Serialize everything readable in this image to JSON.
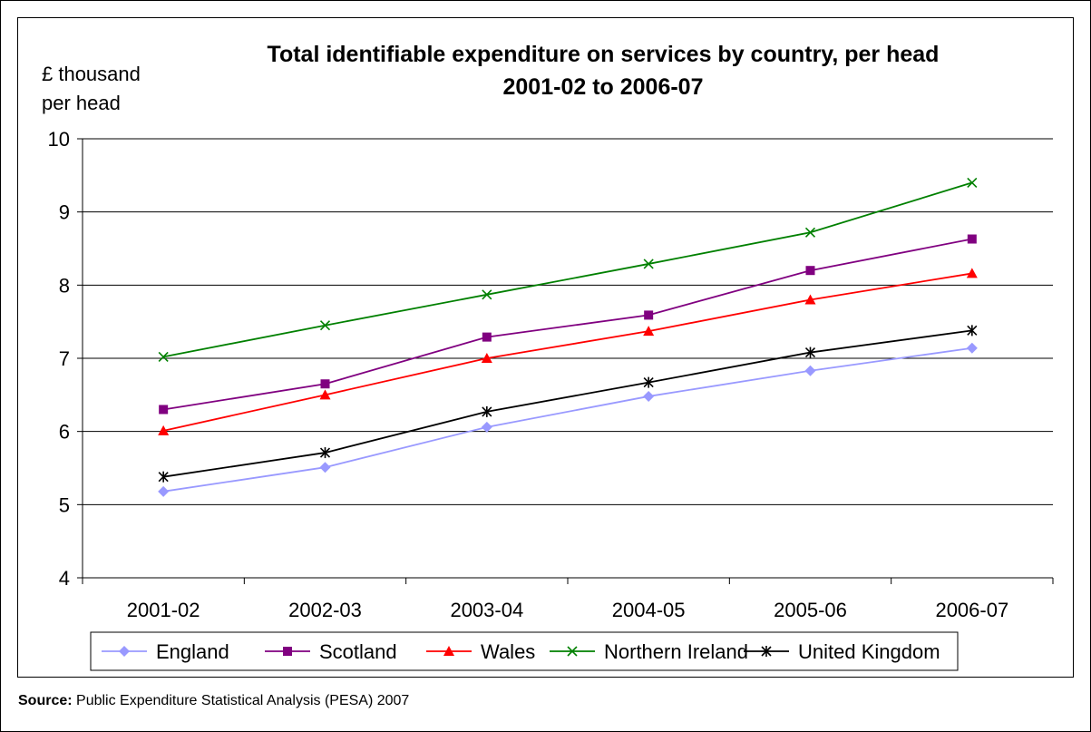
{
  "chart_data": {
    "type": "line",
    "title": "Total identifiable expenditure on services by country, per head",
    "subtitle": "2001-02 to 2006-07",
    "ylabel": "£ thousand per head",
    "ylabel_lines": [
      "£ thousand",
      "per head"
    ],
    "xlabel": "",
    "ylim": [
      4,
      10
    ],
    "yticks": [
      4,
      5,
      6,
      7,
      8,
      9,
      10
    ],
    "grid": true,
    "legend_position": "bottom",
    "categories": [
      "2001-02",
      "2002-03",
      "2003-04",
      "2004-05",
      "2005-06",
      "2006-07"
    ],
    "series": [
      {
        "name": "England",
        "color": "#9999ff",
        "marker": "diamond",
        "values": [
          5.18,
          5.51,
          6.06,
          6.48,
          6.83,
          7.14
        ]
      },
      {
        "name": "Scotland",
        "color": "#800080",
        "marker": "square",
        "values": [
          6.3,
          6.65,
          7.29,
          7.59,
          8.2,
          8.63
        ]
      },
      {
        "name": "Wales",
        "color": "#ff0000",
        "marker": "triangle",
        "values": [
          6.01,
          6.5,
          7.0,
          7.37,
          7.8,
          8.16
        ]
      },
      {
        "name": "Northern Ireland",
        "color": "#008000",
        "marker": "x",
        "values": [
          7.02,
          7.45,
          7.87,
          8.29,
          8.72,
          9.4
        ]
      },
      {
        "name": "United Kingdom",
        "color": "#000000",
        "marker": "star",
        "values": [
          5.38,
          5.71,
          6.27,
          6.67,
          7.08,
          7.38
        ]
      }
    ]
  },
  "source": {
    "label": "Source:",
    "text": "Public Expenditure Statistical Analysis (PESA) 2007"
  }
}
